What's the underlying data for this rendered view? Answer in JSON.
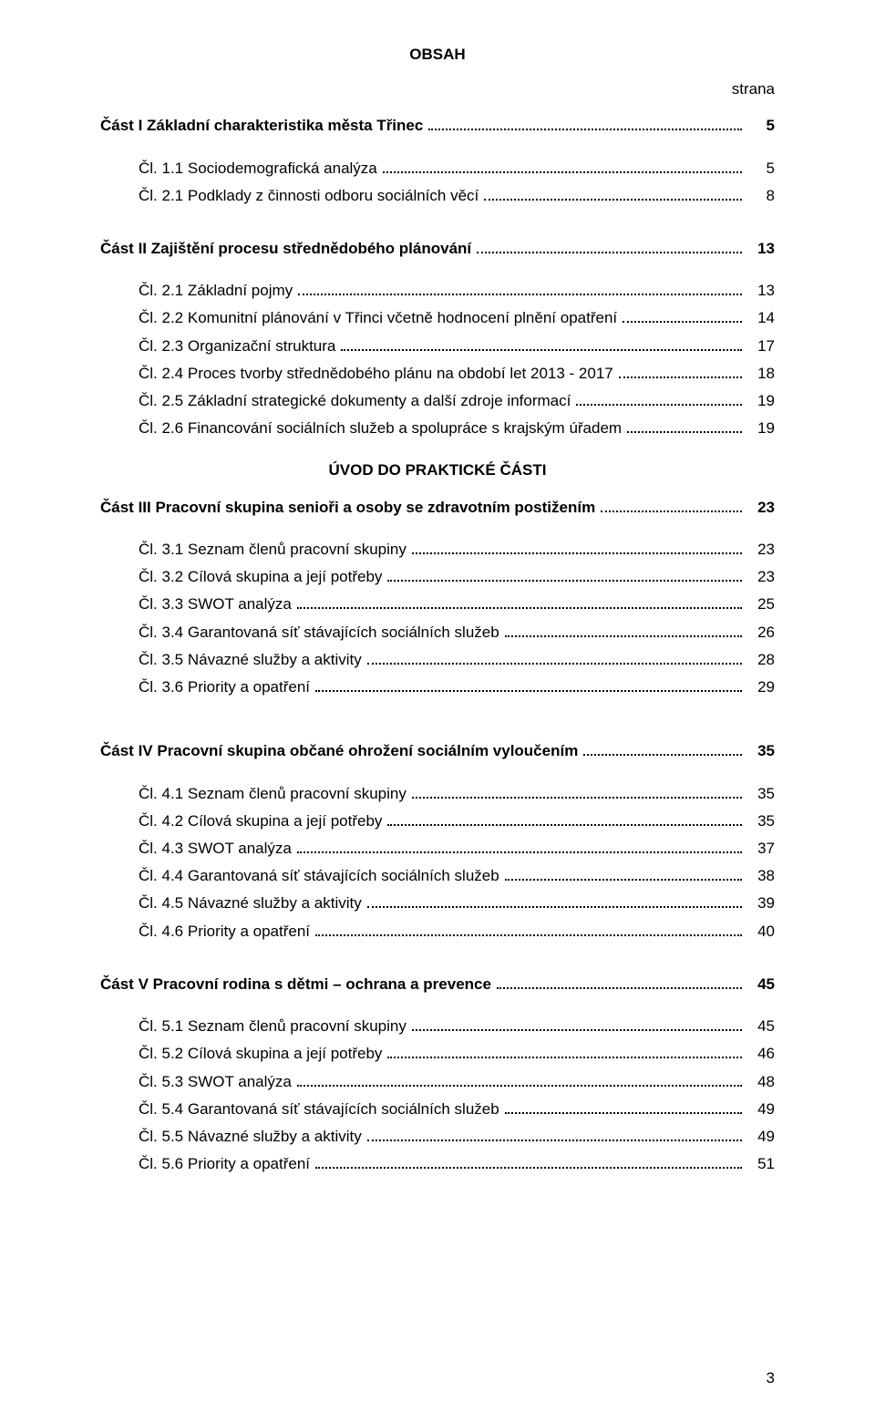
{
  "doc": {
    "heading": "OBSAH",
    "strana_label": "strana",
    "uvod_heading": "ÚVOD DO PRAKTICKÉ ČÁSTI",
    "page_number": "3"
  },
  "toc": {
    "p1": {
      "label": "Část I Základní charakteristika města Třinec",
      "page": "5"
    },
    "c11": {
      "label": "Čl. 1.1 Sociodemografická analýza",
      "page": "5"
    },
    "c21a": {
      "label": "Čl. 2.1 Podklady z činnosti odboru sociálních věcí",
      "page": "8"
    },
    "p2": {
      "label": "Část II Zajištění procesu střednědobého plánování",
      "page": "13"
    },
    "c21": {
      "label": "Čl. 2.1 Základní pojmy",
      "page": "13"
    },
    "c22": {
      "label": "Čl. 2.2 Komunitní plánování v Třinci včetně hodnocení plnění opatření",
      "page": "14"
    },
    "c23": {
      "label": "Čl. 2.3 Organizační struktura",
      "page": "17"
    },
    "c24": {
      "label": "Čl. 2.4 Proces tvorby střednědobého plánu na období let 2013 - 2017",
      "page": "18"
    },
    "c25": {
      "label": "Čl. 2.5 Základní strategické dokumenty a další zdroje informací",
      "page": "19"
    },
    "c26": {
      "label": "Čl. 2.6 Financování sociálních služeb a spolupráce s krajským úřadem",
      "page": "19"
    },
    "p3": {
      "label": "Část III Pracovní skupina senioři a osoby se zdravotním postižením",
      "page": "23"
    },
    "c31": {
      "label": "Čl. 3.1 Seznam členů pracovní skupiny",
      "page": "23"
    },
    "c32": {
      "label": "Čl. 3.2 Cílová skupina a její potřeby",
      "page": "23"
    },
    "c33": {
      "label": "Čl. 3.3 SWOT analýza",
      "page": "25"
    },
    "c34": {
      "label": "Čl. 3.4 Garantovaná síť stávajících sociálních služeb",
      "page": "26"
    },
    "c35": {
      "label": "Čl. 3.5 Návazné služby a aktivity",
      "page": "28"
    },
    "c36": {
      "label": "Čl. 3.6 Priority a opatření",
      "page": "29"
    },
    "p4": {
      "label": "Část IV Pracovní skupina občané ohrožení sociálním vyloučením",
      "page": "35"
    },
    "c41": {
      "label": "Čl. 4.1 Seznam členů pracovní skupiny",
      "page": "35"
    },
    "c42": {
      "label": "Čl. 4.2 Cílová skupina a její potřeby",
      "page": "35"
    },
    "c43": {
      "label": "Čl. 4.3 SWOT analýza",
      "page": "37"
    },
    "c44": {
      "label": "Čl. 4.4 Garantovaná síť stávajících sociálních služeb",
      "page": "38"
    },
    "c45": {
      "label": "Čl. 4.5 Návazné služby a aktivity",
      "page": "39"
    },
    "c46": {
      "label": "Čl. 4.6 Priority a opatření",
      "page": "40"
    },
    "p5": {
      "label": "Část V Pracovní rodina s dětmi – ochrana a prevence",
      "page": "45"
    },
    "c51": {
      "label": "Čl. 5.1 Seznam členů pracovní skupiny",
      "page": "45"
    },
    "c52": {
      "label": "Čl. 5.2 Cílová skupina a její potřeby",
      "page": "46"
    },
    "c53": {
      "label": "Čl. 5.3 SWOT analýza",
      "page": "48"
    },
    "c54": {
      "label": "Čl. 5.4 Garantovaná síť stávajících sociálních služeb",
      "page": "49"
    },
    "c55": {
      "label": "Čl. 5.5 Návazné služby a aktivity",
      "page": "49"
    },
    "c56": {
      "label": "Čl. 5.6 Priority a opatření",
      "page": "51"
    }
  }
}
